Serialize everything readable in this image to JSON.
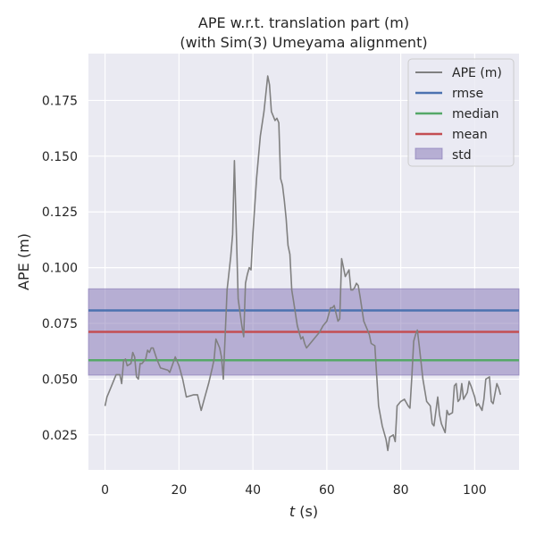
{
  "chart_data": {
    "type": "line",
    "title_line1": "APE w.r.t. translation part (m)",
    "title_line2": "(with Sim(3) Umeyama alignment)",
    "xlabel_italic": "t",
    "xlabel_unit": " (s)",
    "ylabel": "APE (m)",
    "xlim": [
      -4.5,
      112
    ],
    "ylim": [
      0.0093,
      0.196
    ],
    "x_ticks": [
      0,
      20,
      40,
      60,
      80,
      100
    ],
    "y_ticks": [
      0.025,
      0.05,
      0.075,
      0.1,
      0.125,
      0.15,
      0.175
    ],
    "x_tick_labels": [
      "0",
      "20",
      "40",
      "60",
      "80",
      "100"
    ],
    "y_tick_labels": [
      "0.025",
      "0.050",
      "0.075",
      "0.100",
      "0.125",
      "0.150",
      "0.175"
    ],
    "grid": true,
    "legend_position": "top-right",
    "series": [
      {
        "name": "APE (m)",
        "color": "#808080",
        "x": [
          0,
          0.5,
          1,
          2,
          3,
          3.5,
          4,
          4.5,
          5,
          5.5,
          6,
          7,
          7.5,
          8,
          8.5,
          9,
          9.5,
          10,
          11,
          11.5,
          12,
          12.5,
          13,
          14,
          15,
          17,
          17.5,
          19,
          20,
          21,
          22,
          24,
          25,
          26,
          27,
          28,
          29,
          29.5,
          30,
          31,
          31.5,
          32,
          33,
          34,
          34.5,
          35,
          36,
          37,
          37.5,
          38,
          38.5,
          39,
          39.5,
          40,
          41,
          42,
          43,
          44,
          44.5,
          45,
          46,
          46.5,
          47,
          47.5,
          48,
          48.5,
          49,
          49.5,
          50,
          50.5,
          51,
          52,
          53,
          53.5,
          54,
          54.5,
          55,
          56,
          57,
          58,
          59,
          60,
          61,
          61.5,
          62,
          63,
          63.5,
          64,
          64.5,
          65,
          66,
          66.5,
          67,
          67.5,
          68,
          68.5,
          69,
          70,
          71,
          71.5,
          72,
          73,
          74,
          75,
          76,
          76.5,
          77,
          78,
          78.5,
          79,
          80,
          81,
          82,
          82.5,
          83,
          83.5,
          84,
          84.5,
          85,
          86,
          87,
          88,
          88.5,
          89,
          90,
          90.5,
          91,
          92,
          92.5,
          93,
          94,
          94.5,
          95,
          95.5,
          96,
          96.5,
          97,
          98,
          98.5,
          99,
          100,
          100.5,
          101,
          102,
          102.5,
          103,
          104,
          104.5,
          105,
          106,
          106.5,
          107
        ],
        "values": [
          0.038,
          0.042,
          0.044,
          0.048,
          0.052,
          0.052,
          0.052,
          0.048,
          0.058,
          0.059,
          0.056,
          0.057,
          0.062,
          0.06,
          0.051,
          0.05,
          0.057,
          0.057,
          0.059,
          0.063,
          0.062,
          0.064,
          0.064,
          0.059,
          0.055,
          0.054,
          0.053,
          0.06,
          0.056,
          0.05,
          0.042,
          0.043,
          0.043,
          0.036,
          0.042,
          0.048,
          0.055,
          0.059,
          0.068,
          0.064,
          0.06,
          0.05,
          0.09,
          0.105,
          0.115,
          0.148,
          0.086,
          0.074,
          0.069,
          0.093,
          0.097,
          0.1,
          0.099,
          0.115,
          0.14,
          0.159,
          0.17,
          0.186,
          0.182,
          0.17,
          0.166,
          0.167,
          0.165,
          0.14,
          0.137,
          0.13,
          0.122,
          0.11,
          0.106,
          0.09,
          0.085,
          0.074,
          0.068,
          0.069,
          0.066,
          0.064,
          0.065,
          0.067,
          0.069,
          0.071,
          0.074,
          0.076,
          0.082,
          0.082,
          0.083,
          0.076,
          0.077,
          0.104,
          0.1,
          0.096,
          0.099,
          0.09,
          0.09,
          0.091,
          0.093,
          0.092,
          0.087,
          0.076,
          0.072,
          0.07,
          0.066,
          0.065,
          0.038,
          0.029,
          0.023,
          0.018,
          0.024,
          0.025,
          0.022,
          0.038,
          0.04,
          0.041,
          0.038,
          0.037,
          0.051,
          0.067,
          0.07,
          0.072,
          0.065,
          0.05,
          0.04,
          0.038,
          0.03,
          0.029,
          0.042,
          0.034,
          0.03,
          0.026,
          0.036,
          0.034,
          0.035,
          0.047,
          0.048,
          0.04,
          0.041,
          0.048,
          0.041,
          0.044,
          0.049,
          0.047,
          0.042,
          0.038,
          0.039,
          0.036,
          0.041,
          0.05,
          0.051,
          0.04,
          0.039,
          0.048,
          0.046,
          0.043
        ]
      }
    ],
    "hlines": [
      {
        "name": "rmse",
        "value": 0.0808,
        "color": "#4c72b0"
      },
      {
        "name": "median",
        "value": 0.0585,
        "color": "#55a868"
      },
      {
        "name": "mean",
        "value": 0.0712,
        "color": "#c44e52"
      }
    ],
    "band": {
      "name": "std",
      "lower": 0.0518,
      "upper": 0.0905,
      "color": "#8172b3"
    },
    "legend_items": [
      "APE (m)",
      "rmse",
      "median",
      "mean",
      "std"
    ]
  }
}
